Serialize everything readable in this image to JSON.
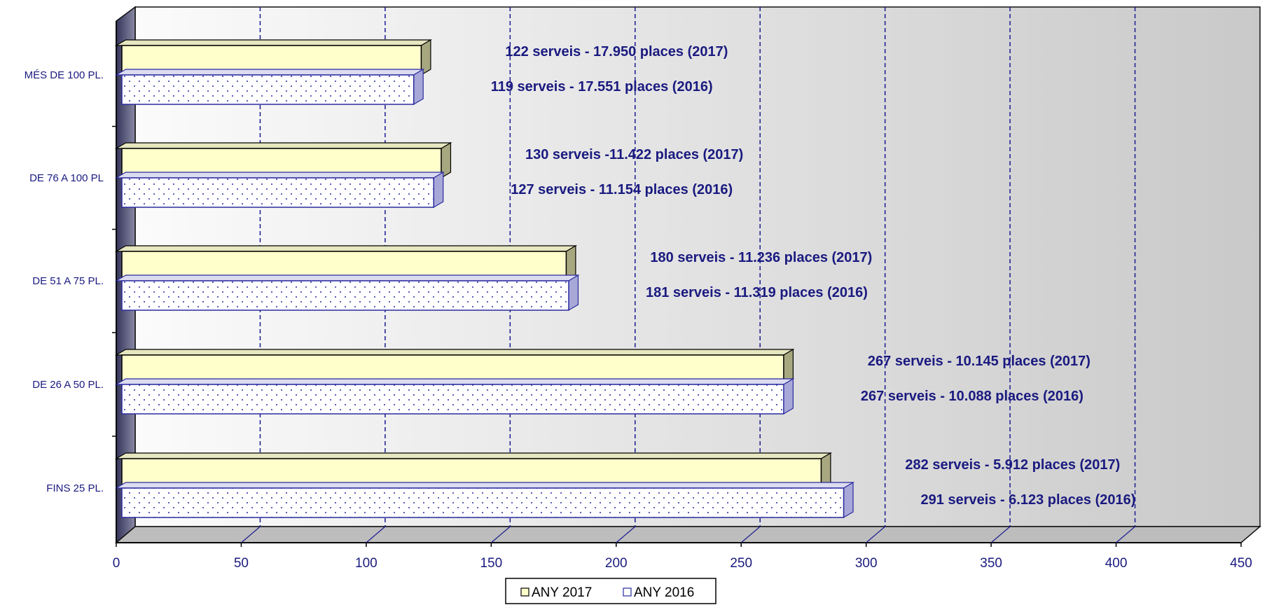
{
  "chart_data": {
    "type": "bar",
    "orientation": "horizontal",
    "three_d": true,
    "categories": [
      "MÉS DE 100 PL.",
      "DE 76 A 100 PL",
      "DE 51 A 75 PL.",
      "DE 26 A 50 PL.",
      "FINS 25 PL."
    ],
    "series": [
      {
        "name": "ANY 2017",
        "values": [
          122,
          130,
          180,
          267,
          282
        ],
        "labels": [
          "122 serveis  - 17.950 places (2017)",
          "130 serveis -11.422 places (2017)",
          "180 serveis  - 11.236 places (2017)",
          "267 serveis  -  10.145 places (2017)",
          "282 serveis   -  5.912 places (2017)"
        ],
        "color": "#ffffcc"
      },
      {
        "name": "ANY 2016",
        "values": [
          119,
          127,
          181,
          267,
          291
        ],
        "labels": [
          "119 serveis  - 17.551 places (2016)",
          "127 serveis  -  11.154 places (2016)",
          "181 serveis  - 11.319 places (2016)",
          "267 serveis  - 10.088 places (2016)",
          "291 serveis  -  6.123 places (2016)"
        ],
        "color": "#ffffff",
        "pattern": "dots"
      }
    ],
    "x_ticks": [
      "0",
      "50",
      "100",
      "150",
      "200",
      "250",
      "300",
      "350",
      "400",
      "450"
    ],
    "xlim": [
      0,
      450
    ],
    "grid": true,
    "legend_position": "bottom"
  }
}
